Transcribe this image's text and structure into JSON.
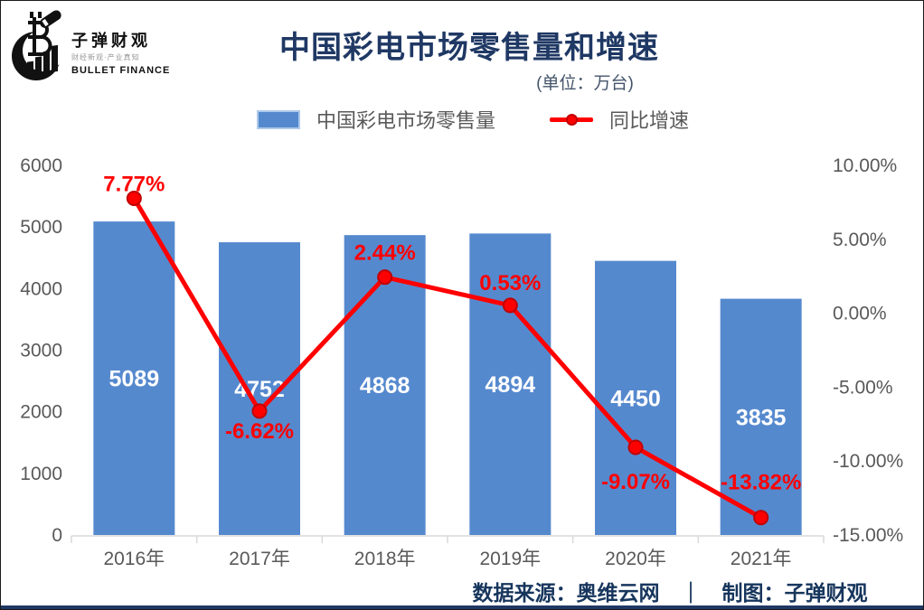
{
  "brand": {
    "name": "子弹财观",
    "tagline": "财经新观·产业真知",
    "name_en": "BULLET FINANCE"
  },
  "header": {
    "title": "中国彩电市场零售量和增速",
    "subtitle": "(单位：万台)"
  },
  "legend": {
    "bar_label": "中国彩电市场零售量",
    "line_label": "同比增速"
  },
  "footer": {
    "text": "数据来源：奥维云网　｜　制图：子弹财观"
  },
  "colors": {
    "bar": "#5589CE",
    "bar_label": "#FFFFFF",
    "line": "#FF0000",
    "marker_fill": "#FF0000",
    "marker_stroke": "#C00000",
    "line_label": "#FF0000",
    "axis_text": "#595959",
    "axis_line": "#D9D9D9",
    "navy": "#1F3864"
  },
  "chart_data": {
    "type": "bar+line",
    "title": "中国彩电市场零售量和增速",
    "unit": "万台",
    "categories": [
      "2016年",
      "2017年",
      "2018年",
      "2019年",
      "2020年",
      "2021年"
    ],
    "series": [
      {
        "name": "中国彩电市场零售量",
        "type": "bar",
        "axis": "left",
        "values": [
          5089,
          4752,
          4868,
          4894,
          4450,
          3835
        ],
        "labels": [
          "5089",
          "4752",
          "4868",
          "4894",
          "4450",
          "3835"
        ]
      },
      {
        "name": "同比增速",
        "type": "line",
        "axis": "right",
        "values": [
          7.77,
          -6.62,
          2.44,
          0.53,
          -9.07,
          -13.82
        ],
        "labels": [
          "7.77%",
          "-6.62%",
          "2.44%",
          "0.53%",
          "-9.07%",
          "-13.82%"
        ]
      }
    ],
    "left_axis": {
      "min": 0,
      "max": 6000,
      "ticks": [
        6000,
        5000,
        4000,
        3000,
        2000,
        1000,
        0
      ]
    },
    "right_axis": {
      "min": -15,
      "max": 10,
      "tick_values": [
        10,
        5,
        0,
        -5,
        -10,
        -15
      ],
      "tick_labels": [
        "10.00%",
        "5.00%",
        "0.00%",
        "-5.00%",
        "-10.00%",
        "-15.00%"
      ]
    },
    "layout_hints": {
      "grid": "off",
      "legend_position": "top",
      "line_label_baseline_offsets": [
        -8,
        30,
        -19,
        -17,
        46,
        -31
      ]
    }
  }
}
